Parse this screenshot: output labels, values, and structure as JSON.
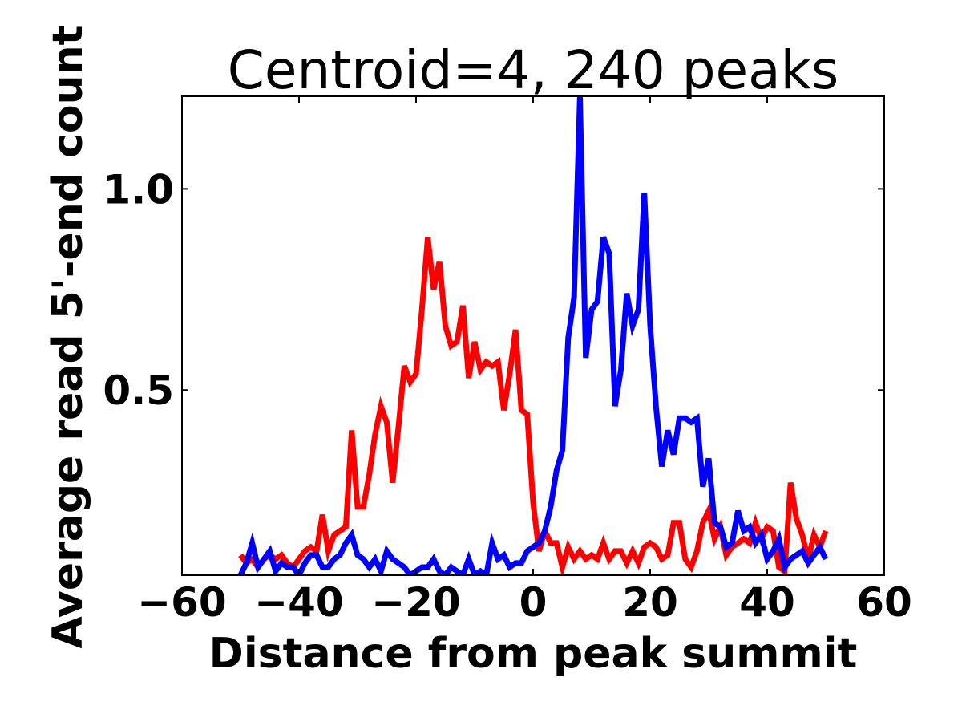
{
  "chart_data": {
    "type": "line",
    "title": "Centroid=4, 240 peaks",
    "xlabel": "Distance from peak summit",
    "ylabel": "Average read 5'-end count",
    "xlim": [
      -60,
      60
    ],
    "ylim": [
      0.04,
      1.23
    ],
    "xticks": [
      -60,
      -40,
      -20,
      0,
      20,
      40,
      60
    ],
    "xtick_labels": [
      "−60",
      "−40",
      "−20",
      "0",
      "20",
      "40",
      "60"
    ],
    "yticks": [
      0.5,
      1.0
    ],
    "ytick_labels": [
      "0.5",
      "1.0"
    ],
    "grid": false,
    "x": [
      -50,
      -49,
      -48,
      -47,
      -46,
      -45,
      -44,
      -43,
      -42,
      -41,
      -40,
      -39,
      -38,
      -37,
      -36,
      -35,
      -34,
      -33,
      -32,
      -31,
      -30,
      -29,
      -28,
      -27,
      -26,
      -25,
      -24,
      -23,
      -22,
      -21,
      -20,
      -19,
      -18,
      -17,
      -16,
      -15,
      -14,
      -13,
      -12,
      -11,
      -10,
      -9,
      -8,
      -7,
      -6,
      -5,
      -4,
      -3,
      -2,
      -1,
      0,
      1,
      2,
      3,
      4,
      5,
      6,
      7,
      8,
      9,
      10,
      11,
      12,
      13,
      14,
      15,
      16,
      17,
      18,
      19,
      20,
      21,
      22,
      23,
      24,
      25,
      26,
      27,
      28,
      29,
      30,
      31,
      32,
      33,
      34,
      35,
      36,
      37,
      38,
      39,
      40,
      41,
      42,
      43,
      44,
      45,
      46,
      47,
      48,
      49,
      50
    ],
    "series": [
      {
        "name": "red",
        "color": "#ff0000",
        "values": [
          0.09,
          0.07,
          0.08,
          0.06,
          0.08,
          0.09,
          0.08,
          0.09,
          0.07,
          0.06,
          0.08,
          0.1,
          0.11,
          0.1,
          0.19,
          0.1,
          0.14,
          0.15,
          0.16,
          0.4,
          0.21,
          0.21,
          0.29,
          0.39,
          0.46,
          0.42,
          0.27,
          0.41,
          0.56,
          0.52,
          0.54,
          0.7,
          0.88,
          0.75,
          0.82,
          0.66,
          0.61,
          0.62,
          0.71,
          0.53,
          0.62,
          0.55,
          0.57,
          0.56,
          0.57,
          0.45,
          0.54,
          0.65,
          0.45,
          0.44,
          0.22,
          0.1,
          0.15,
          0.12,
          0.12,
          0.06,
          0.11,
          0.08,
          0.1,
          0.08,
          0.09,
          0.08,
          0.12,
          0.08,
          0.1,
          0.1,
          0.07,
          0.1,
          0.07,
          0.11,
          0.12,
          0.11,
          0.08,
          0.09,
          0.17,
          0.17,
          0.08,
          0.06,
          0.1,
          0.17,
          0.2,
          0.13,
          0.16,
          0.09,
          0.11,
          0.12,
          0.13,
          0.12,
          0.17,
          0.13,
          0.16,
          0.15,
          0.06,
          0.05,
          0.27,
          0.18,
          0.14,
          0.08,
          0.14,
          0.11,
          0.15
        ]
      },
      {
        "name": "blue",
        "color": "#0000ff",
        "values": [
          0.04,
          0.07,
          0.12,
          0.06,
          0.08,
          0.1,
          0.05,
          0.07,
          0.06,
          0.06,
          0.04,
          0.07,
          0.09,
          0.09,
          0.06,
          0.06,
          0.08,
          0.09,
          0.12,
          0.14,
          0.09,
          0.08,
          0.06,
          0.08,
          0.05,
          0.1,
          0.08,
          0.07,
          0.06,
          0.04,
          0.05,
          0.06,
          0.06,
          0.08,
          0.05,
          0.04,
          0.06,
          0.05,
          0.04,
          0.08,
          0.04,
          0.05,
          0.04,
          0.12,
          0.08,
          0.09,
          0.06,
          0.07,
          0.07,
          0.1,
          0.11,
          0.12,
          0.15,
          0.21,
          0.3,
          0.35,
          0.63,
          0.73,
          1.23,
          0.58,
          0.7,
          0.72,
          0.88,
          0.84,
          0.46,
          0.55,
          0.74,
          0.66,
          0.7,
          0.99,
          0.66,
          0.46,
          0.31,
          0.4,
          0.34,
          0.43,
          0.43,
          0.42,
          0.43,
          0.26,
          0.33,
          0.17,
          0.16,
          0.11,
          0.12,
          0.2,
          0.15,
          0.16,
          0.12,
          0.14,
          0.08,
          0.1,
          0.13,
          0.06,
          0.08,
          0.09,
          0.1,
          0.07,
          0.09,
          0.11,
          0.08
        ]
      }
    ]
  }
}
